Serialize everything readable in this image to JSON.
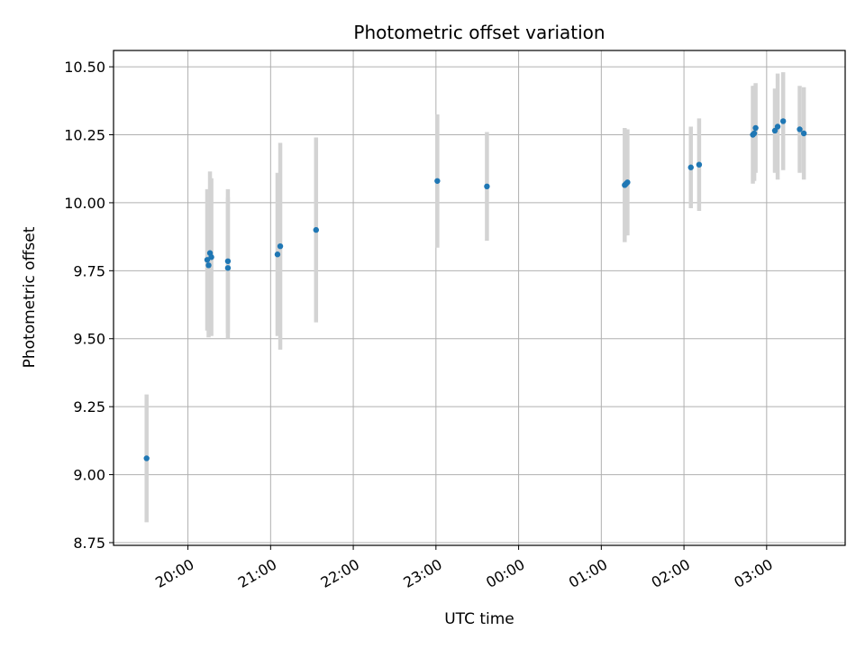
{
  "chart_data": {
    "type": "scatter",
    "title": "Photometric offset variation",
    "xlabel": "UTC time",
    "ylabel": "Photometric offset",
    "x_axis_kind": "time",
    "xlim": [
      "19:06",
      "03:57"
    ],
    "ylim": [
      8.74,
      10.56
    ],
    "x_ticks": [
      "20:00",
      "21:00",
      "22:00",
      "23:00",
      "00:00",
      "01:00",
      "02:00",
      "03:00"
    ],
    "y_ticks": [
      "8.75",
      "9.00",
      "9.25",
      "9.50",
      "9.75",
      "10.00",
      "10.25",
      "10.50"
    ],
    "grid": true,
    "point_color": "#1f77b4",
    "errorbar_color": "#d3d3d3",
    "points": [
      {
        "x": "19:30",
        "y": 9.06,
        "yerr": 0.235
      },
      {
        "x": "20:14",
        "y": 9.79,
        "yerr": 0.26
      },
      {
        "x": "20:15",
        "y": 9.77,
        "yerr": 0.265
      },
      {
        "x": "20:16",
        "y": 9.815,
        "yerr": 0.3
      },
      {
        "x": "20:17",
        "y": 9.8,
        "yerr": 0.29
      },
      {
        "x": "20:29",
        "y": 9.785,
        "yerr": 0.265
      },
      {
        "x": "20:29",
        "y": 9.76,
        "yerr": 0.26
      },
      {
        "x": "21:05",
        "y": 9.81,
        "yerr": 0.3
      },
      {
        "x": "21:07",
        "y": 9.84,
        "yerr": 0.38
      },
      {
        "x": "21:33",
        "y": 9.9,
        "yerr": 0.34
      },
      {
        "x": "23:01",
        "y": 10.08,
        "yerr": 0.245
      },
      {
        "x": "23:37",
        "y": 10.06,
        "yerr": 0.2
      },
      {
        "x": "01:17",
        "y": 10.065,
        "yerr": 0.21
      },
      {
        "x": "01:18",
        "y": 10.07,
        "yerr": 0.19
      },
      {
        "x": "01:19",
        "y": 10.075,
        "yerr": 0.195
      },
      {
        "x": "02:05",
        "y": 10.13,
        "yerr": 0.15
      },
      {
        "x": "02:11",
        "y": 10.14,
        "yerr": 0.17
      },
      {
        "x": "02:50",
        "y": 10.25,
        "yerr": 0.18
      },
      {
        "x": "02:51",
        "y": 10.255,
        "yerr": 0.175
      },
      {
        "x": "02:52",
        "y": 10.275,
        "yerr": 0.165
      },
      {
        "x": "03:06",
        "y": 10.265,
        "yerr": 0.155
      },
      {
        "x": "03:08",
        "y": 10.28,
        "yerr": 0.195
      },
      {
        "x": "03:12",
        "y": 10.3,
        "yerr": 0.18
      },
      {
        "x": "03:24",
        "y": 10.27,
        "yerr": 0.16
      },
      {
        "x": "03:27",
        "y": 10.255,
        "yerr": 0.17
      }
    ]
  }
}
